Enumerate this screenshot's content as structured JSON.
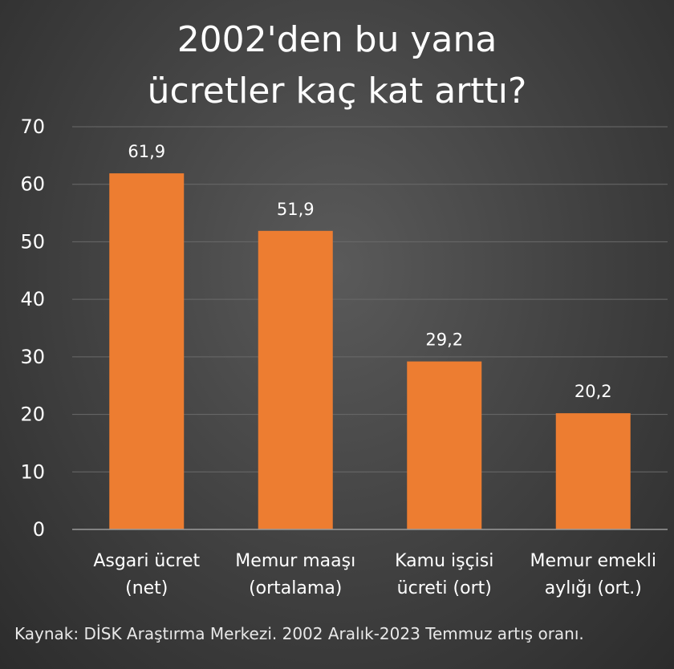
{
  "chart_data": {
    "type": "bar",
    "title_lines": [
      "2002'den bu yana",
      "ücretler kaç kat arttı?"
    ],
    "categories": [
      [
        "Asgari ücret",
        "(net)"
      ],
      [
        "Memur maaşı",
        "(ortalama)"
      ],
      [
        "Kamu işçisi",
        "ücreti (ort)"
      ],
      [
        "Memur emekli",
        "aylığı (ort.)"
      ]
    ],
    "values": [
      61.9,
      51.9,
      29.2,
      20.2
    ],
    "value_labels": [
      "61,9",
      "51,9",
      "29,2",
      "20,2"
    ],
    "ylim": [
      0,
      70
    ],
    "yticks": [
      0,
      10,
      20,
      30,
      40,
      50,
      60,
      70
    ],
    "grid": true,
    "bar_color": "#ED7D31",
    "source": "Kaynak: DİSK Araştırma Merkezi. 2002 Aralık-2023 Temmuz artış oranı."
  }
}
